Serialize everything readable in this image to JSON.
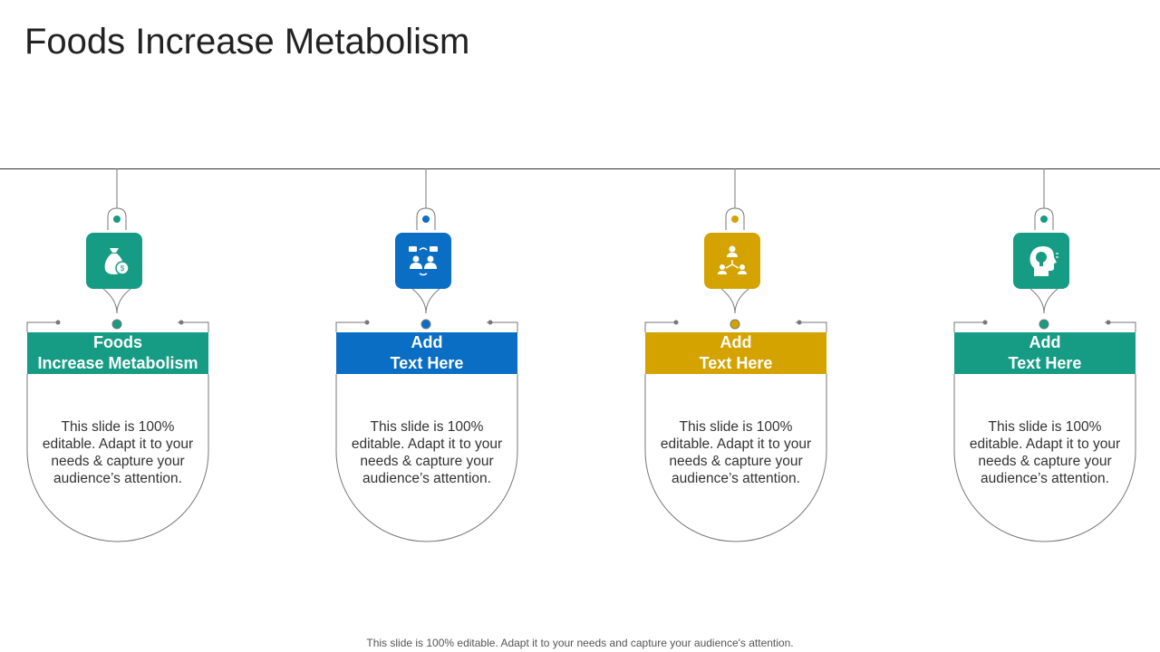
{
  "page": {
    "title": "Foods Increase Metabolism",
    "footer": "This slide is 100% editable. Adapt it to your needs and capture your audience's attention."
  },
  "colors": {
    "teal": "#169C84",
    "blue": "#0A6EC4",
    "gold": "#D4A300",
    "line": "#777777"
  },
  "cards": [
    {
      "label_line1": "Foods",
      "label_line2": "Increase Metabolism",
      "description": "This slide is 100% editable. Adapt it to your needs & capture your audience’s attention.",
      "color": "#169C84",
      "icon": "money-bag-icon"
    },
    {
      "label_line1": "Add",
      "label_line2": "Text Here",
      "description": "This slide is 100% editable. Adapt it to your needs & capture your audience’s attention.",
      "color": "#0A6EC4",
      "icon": "team-communication-icon"
    },
    {
      "label_line1": "Add",
      "label_line2": "Text Here",
      "description": "This slide is 100% editable. Adapt it to your needs & capture your audience’s attention.",
      "color": "#D4A300",
      "icon": "network-people-icon"
    },
    {
      "label_line1": "Add",
      "label_line2": "Text Here",
      "description": "This slide is 100% editable. Adapt it to your needs & capture your audience’s attention.",
      "color": "#169C84",
      "icon": "head-lightbulb-icon"
    }
  ]
}
